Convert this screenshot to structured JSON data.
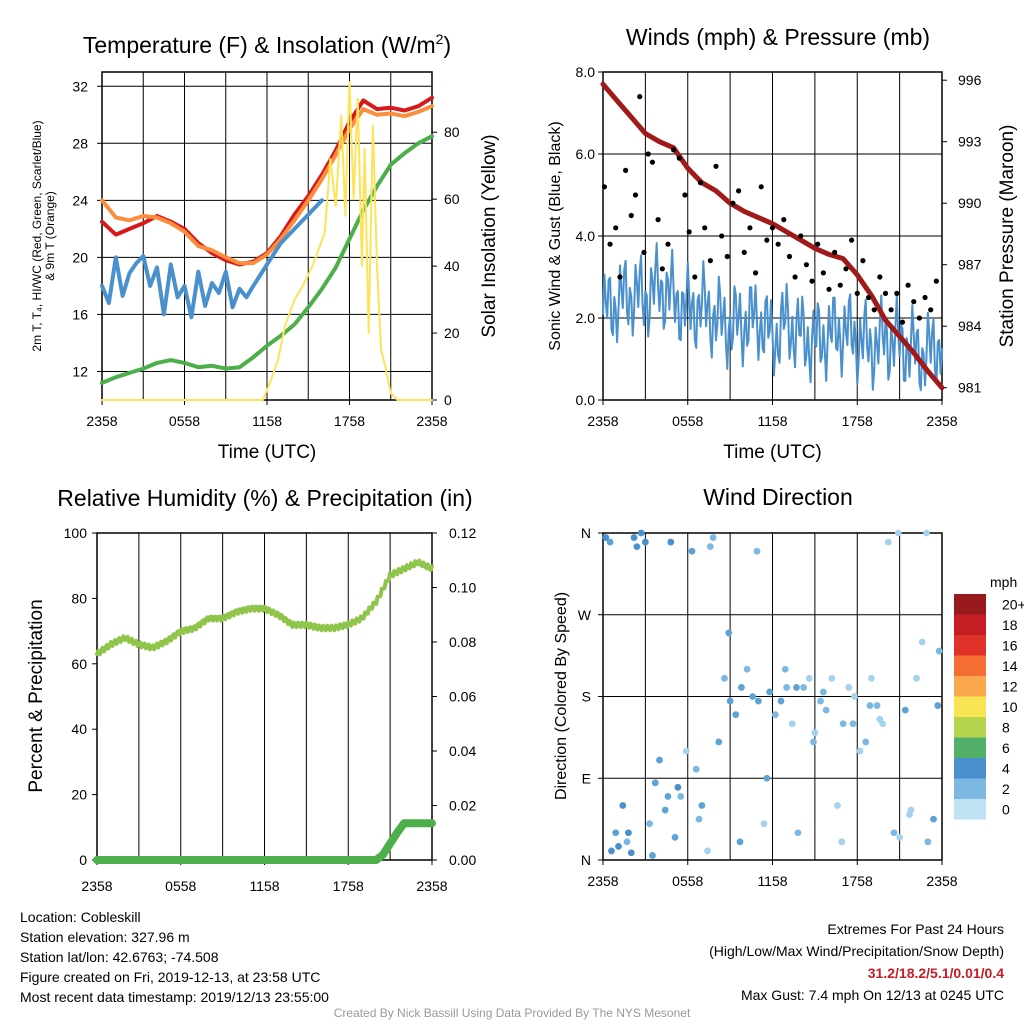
{
  "chart_data": [
    {
      "type": "line",
      "title": "Temperature (F) & Insolation (W/m²)",
      "title_text": "Temperature (F) & Insolation (W/m",
      "title_sup": "2",
      "title_close": ")",
      "xlabel": "Time (UTC)",
      "ylabel_lines": [
        "2m T, T₄, HI/WC (Red, Green, Scarlet/Blue)",
        "& 9m T (Orange)"
      ],
      "y2label": "Solar Insolation (Yellow)",
      "x_ticks": [
        "2358",
        "0558",
        "1158",
        "1758",
        "2358"
      ],
      "ylim": [
        10,
        33
      ],
      "y_ticks": [
        12,
        16,
        20,
        24,
        28,
        32
      ],
      "y2lim": [
        0,
        98
      ],
      "y2_ticks": [
        0,
        20,
        40,
        60,
        80
      ],
      "grid": true,
      "series": [
        {
          "id": "temp_2m",
          "axis": "left",
          "color": "#d7191c",
          "width": 4,
          "x": [
            0,
            1,
            2,
            3,
            4,
            5,
            6,
            7,
            8,
            9,
            10,
            11,
            12,
            13,
            14,
            15,
            16,
            17,
            18,
            19,
            20,
            21,
            22,
            23,
            24
          ],
          "y": [
            22.5,
            21.6,
            22.0,
            22.4,
            22.9,
            22.5,
            22.0,
            21.0,
            20.3,
            19.8,
            19.5,
            19.7,
            20.3,
            21.5,
            23.0,
            24.3,
            25.8,
            27.5,
            29.5,
            31.0,
            30.4,
            30.5,
            30.3,
            30.6,
            31.2
          ]
        },
        {
          "id": "temp_9m",
          "axis": "left",
          "color": "#fb8d3c",
          "width": 4,
          "x": [
            0,
            1,
            2,
            3,
            4,
            5,
            6,
            7,
            8,
            9,
            10,
            11,
            12,
            13,
            14,
            15,
            16,
            17,
            18,
            19,
            20,
            21,
            22,
            23,
            24
          ],
          "y": [
            24.0,
            22.8,
            22.6,
            22.9,
            22.8,
            22.4,
            21.8,
            20.8,
            20.5,
            20.0,
            19.6,
            19.6,
            20.2,
            21.3,
            22.6,
            24.0,
            25.5,
            27.2,
            29.0,
            30.4,
            30.0,
            30.1,
            29.9,
            30.2,
            30.6
          ]
        },
        {
          "id": "dewpoint",
          "axis": "left",
          "color": "#4daf4a",
          "width": 4,
          "x": [
            0,
            1,
            2,
            3,
            4,
            5,
            6,
            7,
            8,
            9,
            10,
            11,
            12,
            13,
            14,
            15,
            16,
            17,
            18,
            19,
            20,
            21,
            22,
            23,
            24
          ],
          "y": [
            11.2,
            11.6,
            11.9,
            12.2,
            12.6,
            12.8,
            12.6,
            12.3,
            12.4,
            12.2,
            12.3,
            13.0,
            13.8,
            14.5,
            15.3,
            16.5,
            17.8,
            19.3,
            21.3,
            23.3,
            25.0,
            26.5,
            27.3,
            28.0,
            28.5
          ]
        },
        {
          "id": "heat_index_windchill",
          "axis": "left",
          "color": "#4a90cc",
          "width": 4,
          "x": [
            0,
            0.5,
            1,
            1.5,
            2,
            2.5,
            3,
            3.5,
            4,
            4.5,
            5,
            5.5,
            6,
            6.5,
            7,
            7.5,
            8,
            8.5,
            9,
            9.5,
            10,
            10.5,
            11,
            12,
            13,
            14,
            15,
            16
          ],
          "y": [
            18.0,
            16.8,
            20.0,
            17.3,
            18.9,
            19.6,
            20.1,
            18.0,
            19.3,
            16.0,
            19.5,
            17.2,
            18.0,
            15.8,
            19.0,
            16.6,
            18.2,
            17.5,
            19.0,
            16.5,
            17.8,
            17.2,
            18.0,
            19.5,
            21.0,
            22.0,
            23.0,
            24.0
          ]
        },
        {
          "id": "solar",
          "axis": "right",
          "color": "#fde359",
          "width": 2,
          "x": [
            0,
            11.0,
            11.7,
            12.2,
            12.8,
            13.3,
            14.0,
            14.6,
            15.3,
            16.2,
            16.6,
            17.0,
            17.4,
            17.7,
            18.0,
            18.3,
            18.6,
            18.9,
            19.1,
            19.4,
            19.7,
            20.0,
            20.3,
            20.6,
            21.0,
            21.5,
            22.0,
            24.0
          ],
          "y": [
            0,
            0,
            0,
            5,
            12,
            22,
            30,
            34,
            40,
            50,
            72,
            58,
            85,
            55,
            95,
            60,
            90,
            40,
            75,
            20,
            82,
            40,
            15,
            10,
            2,
            0,
            0,
            0
          ]
        }
      ]
    },
    {
      "type": "line",
      "title": "Winds (mph) & Pressure (mb)",
      "xlabel": "Time (UTC)",
      "ylabel": "Sonic Wind & Gust (Blue, Black)",
      "y2label": "Station Pressure (Maroon)",
      "x_ticks": [
        "2358",
        "0558",
        "1158",
        "1758",
        "2358"
      ],
      "ylim": [
        0,
        8
      ],
      "y_ticks": [
        "0.0",
        "2.0",
        "4.0",
        "6.0",
        "8.0"
      ],
      "y2lim": [
        980.4,
        996.4
      ],
      "y2_ticks": [
        981,
        984,
        987,
        990,
        993,
        996
      ],
      "grid": true,
      "series": [
        {
          "id": "pressure",
          "axis": "right",
          "color": "#a01a1a",
          "width": 5,
          "x": [
            0,
            1,
            2,
            3,
            4,
            5,
            6,
            7,
            8,
            9,
            10,
            11,
            12,
            13,
            14,
            15,
            16,
            17,
            18,
            19,
            20,
            21,
            22,
            23,
            24
          ],
          "y": [
            995.8,
            995.0,
            994.2,
            993.4,
            993.0,
            992.7,
            991.7,
            991.0,
            990.6,
            990.0,
            989.6,
            989.3,
            989.0,
            988.6,
            988.2,
            987.8,
            987.5,
            987.3,
            986.5,
            985.5,
            984.3,
            983.5,
            982.7,
            981.8,
            981.0
          ]
        },
        {
          "id": "sonic_wind",
          "axis": "left",
          "color": "#4a90cc",
          "width": 2,
          "x": [
            0,
            1,
            2,
            3,
            4,
            5,
            6,
            7,
            8,
            9,
            10,
            11,
            12,
            13,
            14,
            15,
            16,
            17,
            18,
            19,
            20,
            21,
            22,
            23,
            24
          ],
          "y": [
            2.1,
            2.4,
            2.6,
            2.5,
            2.8,
            2.5,
            2.2,
            2.3,
            2.0,
            1.8,
            1.9,
            2.0,
            1.5,
            1.9,
            1.6,
            1.4,
            1.6,
            1.7,
            1.5,
            1.3,
            1.5,
            1.4,
            1.2,
            1.1,
            1.5
          ]
        },
        {
          "id": "gust",
          "axis": "left",
          "color": "#000000",
          "marker": "dot",
          "x": [
            0.1,
            0.5,
            0.9,
            1.2,
            1.6,
            2.0,
            2.3,
            2.6,
            2.9,
            3.2,
            3.5,
            3.9,
            4.2,
            4.6,
            5.0,
            5.4,
            5.8,
            6.1,
            6.5,
            6.9,
            7.2,
            7.6,
            8.0,
            8.4,
            8.8,
            9.2,
            9.6,
            10.0,
            10.4,
            10.8,
            11.2,
            11.6,
            12.0,
            12.4,
            12.8,
            13.2,
            13.6,
            14.0,
            14.4,
            14.8,
            15.2,
            15.6,
            16.0,
            16.4,
            16.8,
            17.2,
            17.6,
            18.0,
            18.4,
            18.8,
            19.2,
            19.6,
            20.0,
            20.4,
            20.8,
            21.2,
            21.6,
            22.0,
            22.4,
            22.8,
            23.2,
            23.6
          ],
          "y": [
            5.2,
            3.8,
            4.2,
            3.0,
            5.6,
            4.5,
            5.0,
            7.4,
            3.6,
            6.0,
            5.8,
            4.4,
            3.2,
            3.8,
            6.1,
            5.9,
            5.0,
            4.1,
            3.0,
            5.3,
            4.2,
            3.4,
            5.7,
            4.0,
            3.5,
            4.8,
            5.1,
            3.6,
            4.2,
            3.1,
            5.2,
            3.9,
            4.2,
            3.8,
            4.4,
            3.5,
            3.0,
            4.0,
            3.3,
            2.9,
            3.8,
            3.1,
            2.7,
            3.6,
            2.8,
            3.2,
            3.9,
            2.6,
            3.4,
            2.5,
            2.2,
            3.0,
            2.6,
            2.2,
            2.6,
            1.9,
            2.8,
            2.4,
            2.0,
            2.5,
            2.2,
            2.9
          ]
        }
      ]
    },
    {
      "type": "line",
      "title": "Relative Humidity (%) & Precipitation (in)",
      "ylabel": "Percent & Precipitation",
      "x_ticks": [
        "2358",
        "0558",
        "1158",
        "1758",
        "2358"
      ],
      "ylim": [
        0,
        100
      ],
      "y_ticks": [
        0,
        20,
        40,
        60,
        80,
        100
      ],
      "y2lim": [
        0,
        0.12
      ],
      "y2_ticks": [
        "0.00",
        "0.02",
        "0.04",
        "0.06",
        "0.08",
        "0.10",
        "0.12"
      ],
      "grid": true,
      "series": [
        {
          "id": "relative_humidity",
          "axis": "left",
          "color": "#8fc54a",
          "width": 4,
          "x": [
            0,
            1,
            2,
            3,
            4,
            5,
            6,
            7,
            8,
            9,
            10,
            11,
            12,
            13,
            14,
            15,
            16,
            17,
            18,
            19,
            20,
            21,
            22,
            23,
            24
          ],
          "y": [
            63,
            66,
            68,
            66,
            65,
            67,
            70,
            71,
            74,
            74,
            76,
            77,
            77,
            75,
            72,
            72,
            71,
            71,
            72,
            74,
            79,
            87,
            89,
            91,
            89
          ]
        },
        {
          "id": "precipitation",
          "axis": "right",
          "color": "#4daf4a",
          "width": 8,
          "x": [
            0,
            20.0,
            20.5,
            21.0,
            21.5,
            22.0,
            24.0
          ],
          "y": [
            0,
            0,
            0.002,
            0.006,
            0.01,
            0.0135,
            0.0135
          ]
        }
      ]
    },
    {
      "type": "scatter",
      "title": "Wind Direction",
      "ylabel": "Direction (Colored By Speed)",
      "x_ticks": [
        "2358",
        "0558",
        "1158",
        "1758",
        "2358"
      ],
      "y_ticks": [
        "N",
        "E",
        "S",
        "W",
        "N"
      ],
      "ylim": [
        0,
        360
      ],
      "grid": true,
      "legend_title": "mph",
      "legend": [
        {
          "label": "20+",
          "color": "#981a1c"
        },
        {
          "label": "18",
          "color": "#c41e24"
        },
        {
          "label": "16",
          "color": "#e0312b"
        },
        {
          "label": "14",
          "color": "#f46d32"
        },
        {
          "label": "12",
          "color": "#fca84e"
        },
        {
          "label": "10",
          "color": "#f9e553"
        },
        {
          "label": "8",
          "color": "#b5d34e"
        },
        {
          "label": "6",
          "color": "#53b06b"
        },
        {
          "label": "4",
          "color": "#4a90cc"
        },
        {
          "label": "2",
          "color": "#7db8e2"
        },
        {
          "label": "0",
          "color": "#bde2f4"
        }
      ],
      "points": {
        "x": [
          0.2,
          0.5,
          0.9,
          1.1,
          1.4,
          1.7,
          2.0,
          2.4,
          2.7,
          3.0,
          3.3,
          3.7,
          4.0,
          4.4,
          4.8,
          5.1,
          5.5,
          5.9,
          6.3,
          6.6,
          7.0,
          7.4,
          7.8,
          8.2,
          8.6,
          9.0,
          9.4,
          9.8,
          10.2,
          10.6,
          11.0,
          11.4,
          11.8,
          12.2,
          12.6,
          13.0,
          13.4,
          13.8,
          14.2,
          14.6,
          15.0,
          15.4,
          15.8,
          16.2,
          16.6,
          17.0,
          17.4,
          17.8,
          18.2,
          18.6,
          19.0,
          19.4,
          19.8,
          20.2,
          20.6,
          21.0,
          21.4,
          21.8,
          22.2,
          22.6,
          23.0,
          23.4,
          23.8,
          0.6,
          1.8,
          3.5,
          4.6,
          6.8,
          8.9,
          10.9,
          12.9,
          14.9,
          16.9,
          18.9,
          20.9,
          22.9,
          23.7,
          2.2,
          5.3,
          9.7,
          13.7,
          17.7,
          21.7,
          7.6,
          11.6,
          15.6,
          19.6
        ],
        "y": [
          355,
          350,
          30,
          15,
          60,
          20,
          8,
          345,
          360,
          350,
          40,
          85,
          110,
          55,
          350,
          25,
          70,
          120,
          340,
          100,
          60,
          10,
          355,
          130,
          200,
          175,
          160,
          190,
          210,
          180,
          175,
          40,
          185,
          160,
          175,
          190,
          150,
          30,
          190,
          200,
          140,
          175,
          165,
          200,
          60,
          150,
          190,
          180,
          120,
          130,
          200,
          170,
          150,
          350,
          30,
          25,
          165,
          55,
          200,
          240,
          20,
          45,
          230,
          10,
          30,
          5,
          70,
          45,
          250,
          340,
          210,
          130,
          20,
          170,
          360,
          360,
          170,
          355,
          80,
          20,
          190,
          150,
          50,
          345,
          90,
          185,
          155
        ],
        "c": [
          4,
          3,
          3,
          4,
          4,
          2,
          4,
          4,
          4,
          4,
          2,
          3,
          3,
          3,
          4,
          3,
          2,
          1,
          3,
          2,
          3,
          1,
          2,
          3,
          2,
          3,
          3,
          3,
          2,
          3,
          3,
          1,
          3,
          2,
          3,
          2,
          1,
          2,
          2,
          1,
          1,
          2,
          2,
          1,
          1,
          2,
          1,
          1,
          1,
          2,
          1,
          2,
          1,
          1,
          2,
          1,
          3,
          1,
          1,
          1,
          2,
          3,
          2,
          4,
          4,
          3,
          3,
          2,
          3,
          2,
          2,
          2,
          1,
          2,
          1,
          1,
          3,
          4,
          4,
          3,
          3,
          2,
          1,
          2,
          3,
          2,
          1
        ]
      }
    }
  ],
  "footer": {
    "location": "Location: Cobleskill",
    "elevation": "Station elevation: 327.96 m",
    "latlon": "Station lat/lon: 42.6763; -74.508",
    "created": "Figure created on Fri, 2019-12-13, at 23:58 UTC",
    "recent": "Most recent data timestamp: 2019/12/13 23:55:00",
    "extremes_title": "Extremes For Past 24 Hours",
    "extremes_desc": "(High/Low/Max Wind/Precipitation/Snow Depth)",
    "extremes_values": "31.2/18.2/5.1/0.01/0.4",
    "max_gust": "Max Gust: 7.4 mph On 12/13 at 0245 UTC",
    "credit": "Created By Nick Bassill Using Data Provided By The NYS Mesonet"
  }
}
